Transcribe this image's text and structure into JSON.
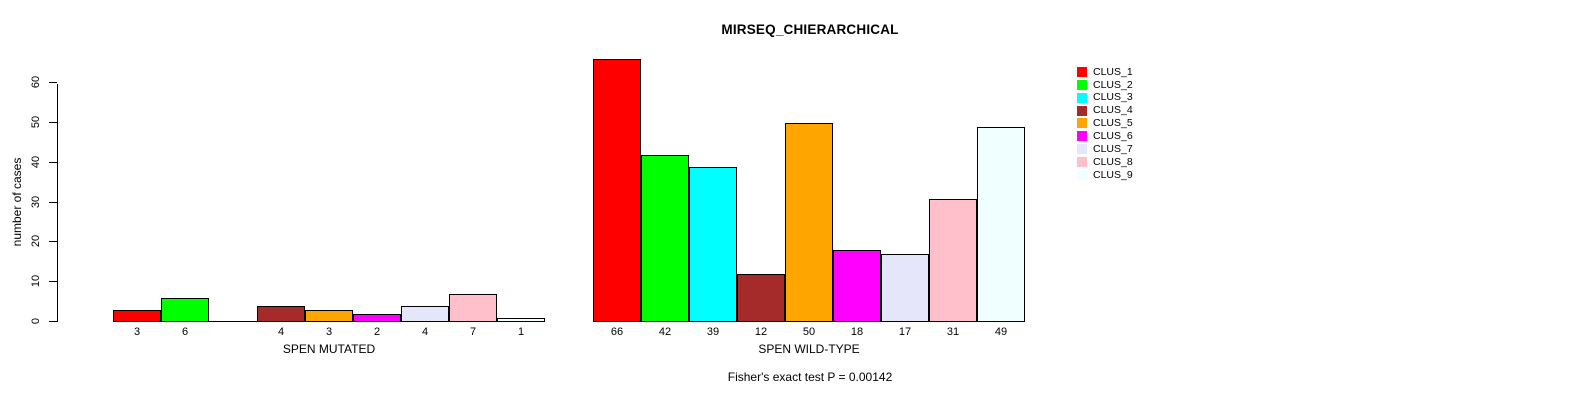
{
  "title": "MIRSEQ_CHIERARCHICAL",
  "caption": "Fisher's exact test P = 0.00142",
  "y_axis": {
    "label": "number of cases",
    "tick_labels": [
      "0",
      "10",
      "20",
      "30",
      "40",
      "50",
      "60"
    ]
  },
  "chart_data": {
    "type": "bar",
    "title": "MIRSEQ_CHIERARCHICAL",
    "xlabel": "",
    "ylabel": "number of cases",
    "ylim": [
      0,
      60
    ],
    "y_ticks": [
      0,
      10,
      20,
      30,
      40,
      50,
      60
    ],
    "grid": false,
    "legend_position": "top-right",
    "legend": [
      {
        "name": "CLUS_1",
        "color": "#FF0000"
      },
      {
        "name": "CLUS_2",
        "color": "#00FF00"
      },
      {
        "name": "CLUS_3",
        "color": "#00FFFF"
      },
      {
        "name": "CLUS_4",
        "color": "#A52A2A"
      },
      {
        "name": "CLUS_5",
        "color": "#FFA500"
      },
      {
        "name": "CLUS_6",
        "color": "#FF00FF"
      },
      {
        "name": "CLUS_7",
        "color": "#E6E6FA"
      },
      {
        "name": "CLUS_8",
        "color": "#FFC0CB"
      },
      {
        "name": "CLUS_9",
        "color": "#F0FFFF"
      }
    ],
    "groups": [
      {
        "label": "SPEN MUTATED",
        "values": [
          3,
          6,
          0,
          4,
          3,
          2,
          4,
          7,
          1
        ],
        "bar_labels": [
          "3",
          "6",
          "",
          "4",
          "3",
          "2",
          "4",
          "7",
          "1"
        ]
      },
      {
        "label": "SPEN WILD-TYPE",
        "values": [
          66,
          42,
          39,
          12,
          50,
          18,
          17,
          31,
          49
        ],
        "bar_labels": [
          "66",
          "42",
          "39",
          "12",
          "50",
          "18",
          "17",
          "31",
          "49"
        ]
      }
    ],
    "annotation": "Fisher's exact test P = 0.00142"
  }
}
